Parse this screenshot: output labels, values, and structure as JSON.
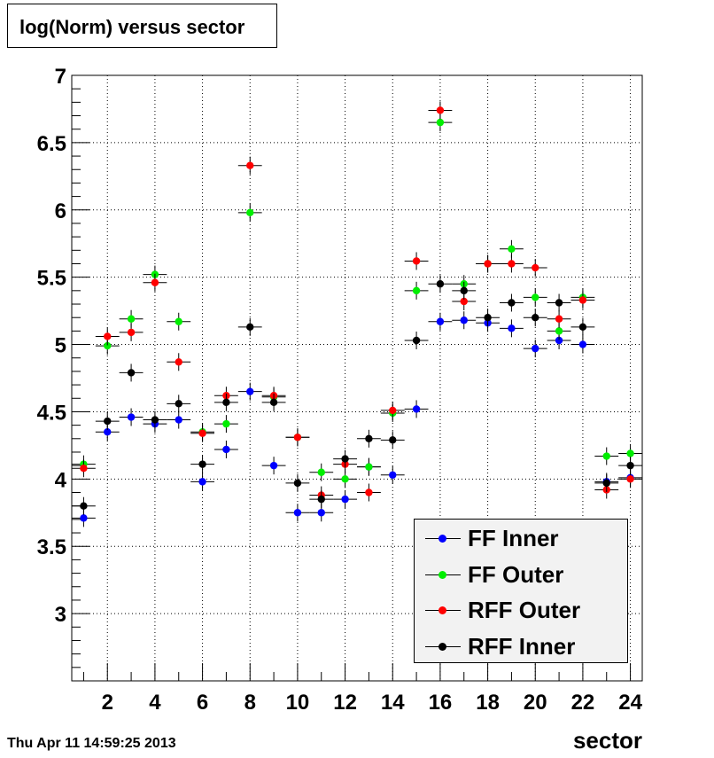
{
  "chart_data": {
    "type": "scatter",
    "title": "log(Norm) versus sector",
    "xlabel": "sector",
    "ylabel": "",
    "xlim": [
      0.5,
      24.5
    ],
    "ylim": [
      2.5,
      7.0
    ],
    "x_ticks": [
      2,
      4,
      6,
      8,
      10,
      12,
      14,
      16,
      18,
      20,
      22,
      24
    ],
    "y_ticks": [
      "3",
      "3.5",
      "4",
      "4.5",
      "5",
      "5.5",
      "6",
      "6.5",
      "7"
    ],
    "grid": true,
    "legend_position": "bottom-right",
    "x": [
      1,
      2,
      3,
      4,
      5,
      6,
      7,
      8,
      9,
      10,
      11,
      12,
      13,
      14,
      15,
      16,
      17,
      18,
      19,
      20,
      21,
      22,
      23,
      24
    ],
    "series": [
      {
        "name": "FF Inner",
        "color": "#0000ff",
        "values": [
          3.71,
          4.35,
          4.46,
          4.41,
          4.44,
          3.98,
          4.22,
          4.65,
          4.1,
          3.75,
          3.75,
          3.85,
          4.09,
          4.03,
          4.52,
          5.17,
          5.18,
          5.16,
          5.12,
          4.97,
          5.03,
          5.0,
          3.98,
          4.01
        ]
      },
      {
        "name": "FF Outer",
        "color": "#00ee00",
        "values": [
          4.11,
          4.99,
          5.19,
          5.52,
          5.17,
          4.35,
          4.41,
          5.98,
          4.61,
          4.31,
          4.05,
          4.0,
          4.09,
          4.49,
          5.4,
          6.65,
          5.45,
          5.6,
          5.71,
          5.35,
          5.1,
          5.35,
          4.17,
          4.19
        ]
      },
      {
        "name": "RFF Outer",
        "color": "#ff0000",
        "values": [
          4.08,
          5.06,
          5.09,
          5.46,
          4.87,
          4.34,
          4.62,
          6.33,
          4.62,
          4.31,
          3.88,
          4.11,
          3.9,
          4.51,
          5.62,
          6.74,
          5.32,
          5.6,
          5.6,
          5.57,
          5.19,
          5.33,
          3.92,
          4.0
        ]
      },
      {
        "name": "RFF Inner",
        "color": "#000000",
        "values": [
          3.8,
          4.43,
          4.79,
          4.44,
          4.56,
          4.11,
          4.57,
          5.13,
          4.57,
          3.97,
          3.85,
          4.15,
          4.3,
          4.29,
          5.03,
          5.45,
          5.4,
          5.2,
          5.31,
          5.2,
          5.31,
          5.13,
          3.97,
          4.1
        ]
      }
    ]
  },
  "timestamp": "Thu Apr 11 14:59:25 2013"
}
